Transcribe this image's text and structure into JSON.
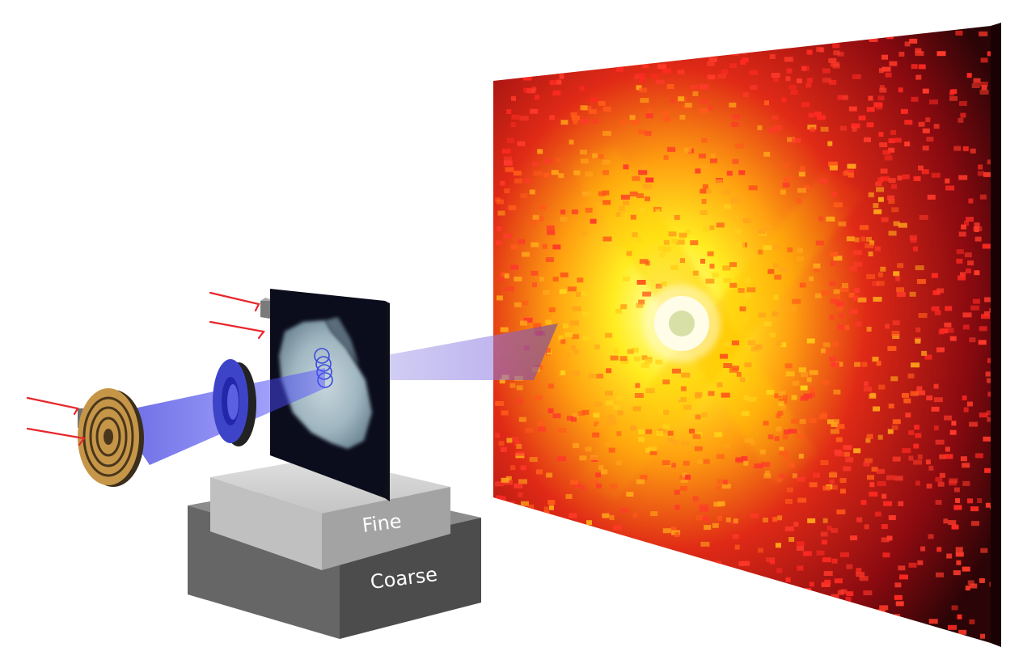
{
  "labels": {
    "fine_stage": "Fine",
    "coarse_stage": "Coarse"
  },
  "colors": {
    "background": "#ffffff",
    "beam": "#3d3de0",
    "arrows": "#e8262c",
    "detector_hot": "#ffff40",
    "detector_warm": "#ff9a10",
    "detector_cool": "#d0101a",
    "detector_edge": "#2a0406",
    "zone_plate": "#c69648",
    "stage_fine": "#a9a9a9",
    "stage_coarse": "#5a5a5a"
  },
  "icons": {
    "zone_plate": "zone-plate-icon",
    "lens": "lens-ring-icon",
    "sample": "sample-screen-icon",
    "detector": "detector-panel-icon",
    "arrows": "red-arrow-icon"
  }
}
